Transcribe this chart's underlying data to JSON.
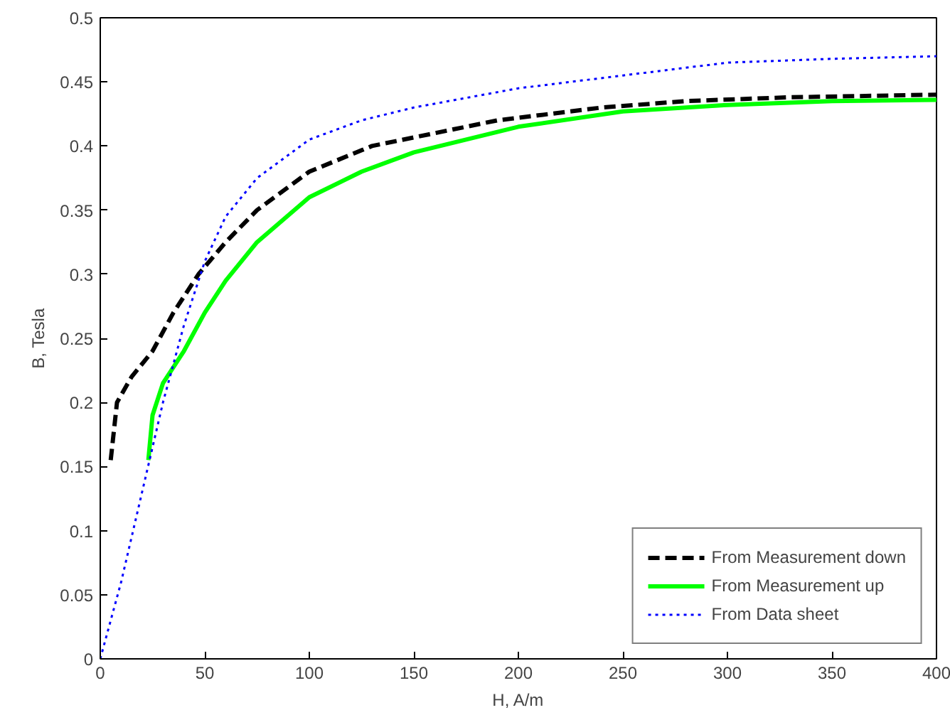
{
  "chart_data": {
    "type": "line",
    "xlabel": "H, A/m",
    "ylabel": "B, Tesla",
    "xlim": [
      0,
      400
    ],
    "ylim": [
      0,
      0.5
    ],
    "xticks": [
      0,
      50,
      100,
      150,
      200,
      250,
      300,
      350,
      400
    ],
    "yticks": [
      0,
      {
        "value": 0.05,
        "label": "0.05"
      },
      {
        "value": 0.1,
        "label": "0.1"
      },
      {
        "value": 0.15,
        "label": "0.15"
      },
      {
        "value": 0.2,
        "label": "0.2"
      },
      {
        "value": 0.25,
        "label": "0.25"
      },
      {
        "value": 0.3,
        "label": "0.3"
      },
      {
        "value": 0.35,
        "label": "0.35"
      },
      {
        "value": 0.4,
        "label": "0.4"
      },
      {
        "value": 0.45,
        "label": "0.45"
      },
      {
        "value": 0.5,
        "label": "0.5"
      }
    ],
    "grid": false,
    "legend": "bottom right",
    "series": [
      {
        "name": "From Measurement down",
        "color": "#000000",
        "line_style": "dashed",
        "x": [
          5,
          8,
          15,
          25,
          35,
          47,
          60,
          75,
          100,
          130,
          160,
          190,
          240,
          280,
          330,
          400
        ],
        "values": [
          0.155,
          0.2,
          0.22,
          0.24,
          0.27,
          0.3,
          0.325,
          0.35,
          0.38,
          0.4,
          0.41,
          0.42,
          0.43,
          0.435,
          0.438,
          0.44
        ]
      },
      {
        "name": "From Measurement up",
        "color": "#00ff00",
        "line_style": "solid",
        "x": [
          23,
          25,
          30,
          40,
          50,
          60,
          75,
          100,
          125,
          150,
          200,
          250,
          300,
          350,
          400
        ],
        "values": [
          0.155,
          0.19,
          0.215,
          0.24,
          0.27,
          0.295,
          0.325,
          0.36,
          0.38,
          0.395,
          0.415,
          0.427,
          0.432,
          0.435,
          0.436
        ]
      },
      {
        "name": "From Data sheet",
        "color": "#0000ff",
        "line_style": "dotted",
        "x": [
          0,
          10,
          20,
          30,
          40,
          50,
          60,
          75,
          100,
          125,
          150,
          200,
          250,
          300,
          350,
          400
        ],
        "values": [
          0,
          0.06,
          0.13,
          0.2,
          0.26,
          0.31,
          0.345,
          0.375,
          0.405,
          0.42,
          0.43,
          0.445,
          0.455,
          0.465,
          0.468,
          0.47
        ]
      }
    ]
  }
}
